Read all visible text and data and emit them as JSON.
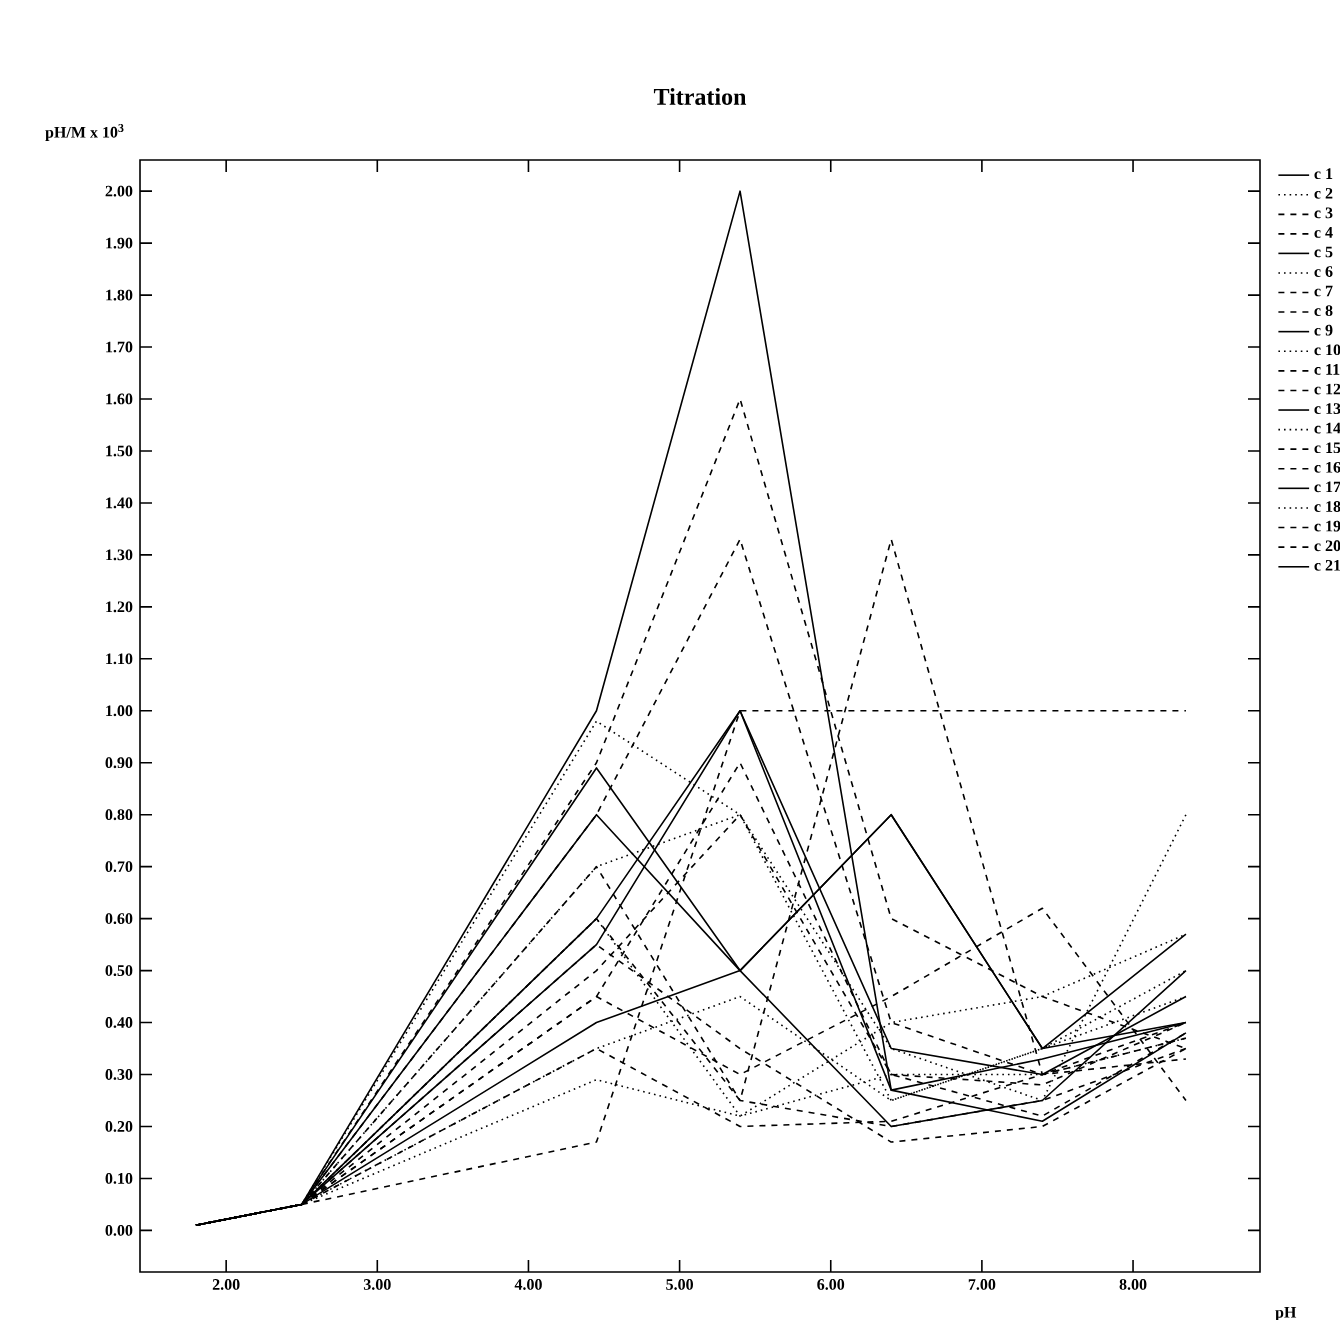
{
  "chart_data": {
    "type": "line",
    "title": "Titration",
    "xlabel": "pH",
    "ylabel": "pH/M x 10$^{3}$",
    "x": [
      1.8,
      2.5,
      4.45,
      5.4,
      6.4,
      7.4,
      8.35
    ],
    "xlim": [
      1.43,
      8.84
    ],
    "ylim": [
      -0.08,
      2.06
    ],
    "xticks": [
      {
        "value": 2,
        "label": "2.00"
      },
      {
        "value": 3,
        "label": "3.00"
      },
      {
        "value": 4,
        "label": "4.00"
      },
      {
        "value": 5,
        "label": "5.00"
      },
      {
        "value": 6,
        "label": "6.00"
      },
      {
        "value": 7,
        "label": "7.00"
      },
      {
        "value": 8,
        "label": "8.00"
      }
    ],
    "yticks": [
      {
        "value": 0,
        "label": "0.00"
      },
      {
        "value": 0.1,
        "label": "0.10"
      },
      {
        "value": 0.2,
        "label": "0.20"
      },
      {
        "value": 0.3,
        "label": "0.30"
      },
      {
        "value": 0.4,
        "label": "0.40"
      },
      {
        "value": 0.5,
        "label": "0.50"
      },
      {
        "value": 0.6,
        "label": "0.60"
      },
      {
        "value": 0.7,
        "label": "0.70"
      },
      {
        "value": 0.8,
        "label": "0.80"
      },
      {
        "value": 0.9,
        "label": "0.90"
      },
      {
        "value": 1,
        "label": "1.00"
      },
      {
        "value": 1.1,
        "label": "1.10"
      },
      {
        "value": 1.2,
        "label": "1.20"
      },
      {
        "value": 1.3,
        "label": "1.30"
      },
      {
        "value": 1.4,
        "label": "1.40"
      },
      {
        "value": 1.5,
        "label": "1.50"
      },
      {
        "value": 1.6,
        "label": "1.60"
      },
      {
        "value": 1.7,
        "label": "1.70"
      },
      {
        "value": 1.8,
        "label": "1.80"
      },
      {
        "value": 1.9,
        "label": "1.90"
      },
      {
        "value": 2,
        "label": "2.00"
      }
    ],
    "legend": "right",
    "marker": "none",
    "series": [
      {
        "name": "c 1",
        "color": "#000000",
        "line_style": "solid",
        "values": [
          0.01,
          0.05,
          1.0,
          2.0,
          0.27,
          0.33,
          0.4
        ]
      },
      {
        "name": "c 2",
        "color": "#000000",
        "line_style": "dotted",
        "values": [
          0.01,
          0.05,
          0.98,
          0.8,
          0.35,
          0.25,
          0.8
        ]
      },
      {
        "name": "c 3",
        "color": "#000000",
        "line_style": "dashed",
        "values": [
          0.01,
          0.05,
          0.8,
          1.33,
          0.4,
          0.3,
          0.37
        ]
      },
      {
        "name": "c 4",
        "color": "#000000",
        "line_style": "dashed",
        "values": [
          0.01,
          0.05,
          0.9,
          1.6,
          0.6,
          0.45,
          0.35
        ]
      },
      {
        "name": "c 5",
        "color": "#000000",
        "line_style": "solid",
        "values": [
          0.01,
          0.05,
          0.89,
          0.5,
          0.2,
          0.25,
          0.5
        ]
      },
      {
        "name": "c 6",
        "color": "#000000",
        "line_style": "dotted",
        "values": [
          0.01,
          0.05,
          0.7,
          0.8,
          0.25,
          0.35,
          0.45
        ]
      },
      {
        "name": "c 7",
        "color": "#000000",
        "line_style": "dashed",
        "values": [
          0.01,
          0.05,
          0.6,
          0.25,
          1.33,
          0.3,
          0.4
        ]
      },
      {
        "name": "c 8",
        "color": "#000000",
        "line_style": "dashed",
        "values": [
          0.01,
          0.05,
          0.17,
          1.0,
          1.0,
          1.0,
          1.0
        ]
      },
      {
        "name": "c 9",
        "color": "#000000",
        "line_style": "solid",
        "values": [
          0.01,
          0.05,
          0.8,
          0.5,
          0.8,
          0.35,
          0.4
        ]
      },
      {
        "name": "c 10",
        "color": "#000000",
        "line_style": "dotted",
        "values": [
          0.01,
          0.05,
          0.29,
          0.22,
          0.4,
          0.45,
          0.57
        ]
      },
      {
        "name": "c 11",
        "color": "#000000",
        "line_style": "dashed",
        "values": [
          0.01,
          0.05,
          0.55,
          0.35,
          0.17,
          0.2,
          0.35
        ]
      },
      {
        "name": "c 12",
        "color": "#000000",
        "line_style": "dashed",
        "values": [
          0.01,
          0.05,
          0.45,
          0.3,
          0.45,
          0.62,
          0.25
        ]
      },
      {
        "name": "c 13",
        "color": "#000000",
        "line_style": "solid",
        "values": [
          0.01,
          0.05,
          0.4,
          0.5,
          0.8,
          0.35,
          0.57
        ]
      },
      {
        "name": "c 14",
        "color": "#000000",
        "line_style": "dotted",
        "values": [
          0.01,
          0.05,
          0.6,
          0.22,
          0.3,
          0.3,
          0.37
        ]
      },
      {
        "name": "c 15",
        "color": "#000000",
        "line_style": "dashed",
        "values": [
          0.01,
          0.05,
          0.5,
          0.8,
          0.3,
          0.28,
          0.4
        ]
      },
      {
        "name": "c 16",
        "color": "#000000",
        "line_style": "dashed",
        "values": [
          0.01,
          0.05,
          0.35,
          0.2,
          0.21,
          0.3,
          0.33
        ]
      },
      {
        "name": "c 17",
        "color": "#000000",
        "line_style": "solid",
        "values": [
          0.01,
          0.05,
          0.55,
          1.0,
          0.35,
          0.3,
          0.45
        ]
      },
      {
        "name": "c 18",
        "color": "#000000",
        "line_style": "dotted",
        "values": [
          0.01,
          0.05,
          0.35,
          0.45,
          0.25,
          0.35,
          0.5
        ]
      },
      {
        "name": "c 19",
        "color": "#000000",
        "line_style": "dashed",
        "values": [
          0.01,
          0.05,
          0.7,
          0.25,
          0.2,
          0.25,
          0.35
        ]
      },
      {
        "name": "c 20",
        "color": "#000000",
        "line_style": "dashed",
        "values": [
          0.01,
          0.05,
          0.45,
          0.9,
          0.3,
          0.22,
          0.38
        ]
      },
      {
        "name": "c 21",
        "color": "#000000",
        "line_style": "solid",
        "values": [
          0.01,
          0.05,
          0.6,
          1.0,
          0.27,
          0.21,
          0.38
        ]
      }
    ]
  }
}
